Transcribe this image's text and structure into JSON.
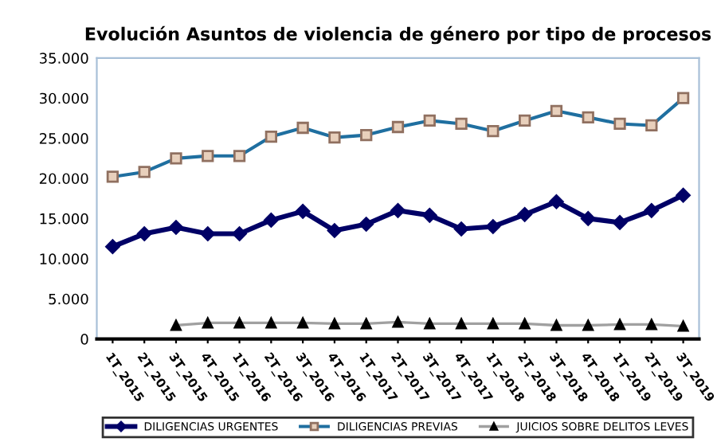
{
  "chart_data": {
    "type": "line",
    "title": "Evolución Asuntos de violencia de género por tipo de procesos",
    "categories": [
      "1T_2015",
      "2T_2015",
      "3T_2015",
      "4T_2015",
      "1T_2016",
      "2T_2016",
      "3T_2016",
      "4T_2016",
      "1T_2017",
      "2T_2017",
      "3T_2017",
      "4T_2017",
      "1T_2018",
      "2T_2018",
      "3T_2018",
      "4T_2018",
      "1T_2019",
      "2T_2019",
      "3T_2019"
    ],
    "series": [
      {
        "name": "DILIGENCIAS URGENTES",
        "color": "#000066",
        "marker": "diamond",
        "values": [
          11500,
          13100,
          13900,
          13100,
          13100,
          14800,
          15900,
          13500,
          14300,
          16000,
          15400,
          13700,
          14000,
          15500,
          17100,
          15000,
          14500,
          16000,
          17900
        ]
      },
      {
        "name": "DILIGENCIAS PREVIAS",
        "color": "#1f6fa0",
        "marker": "square",
        "values": [
          20200,
          20800,
          22500,
          22800,
          22800,
          25200,
          26300,
          25100,
          25400,
          26400,
          27200,
          26800,
          25900,
          27200,
          28400,
          27600,
          26800,
          26600,
          30000
        ]
      },
      {
        "name": "JUICIOS SOBRE DELITOS LEVES",
        "color": "#a0a0a0",
        "marker": "triangle",
        "values": [
          null,
          null,
          1700,
          2000,
          2000,
          2000,
          2000,
          1900,
          1900,
          2100,
          1900,
          1900,
          1900,
          1900,
          1700,
          1700,
          1800,
          1800,
          1600
        ]
      }
    ],
    "ylim": [
      0,
      35000
    ],
    "yticks": [
      0,
      {
        "value": 5000,
        "label": "5.000"
      },
      {
        "value": 10000,
        "label": "10.000"
      },
      {
        "value": 15000,
        "label": "15.000"
      },
      {
        "value": 20000,
        "label": "20.000"
      },
      {
        "value": 25000,
        "label": "25.000"
      },
      {
        "value": 30000,
        "label": "30.000"
      },
      {
        "value": 35000,
        "label": "35.000"
      }
    ],
    "legend": "bottom",
    "grid": false
  }
}
